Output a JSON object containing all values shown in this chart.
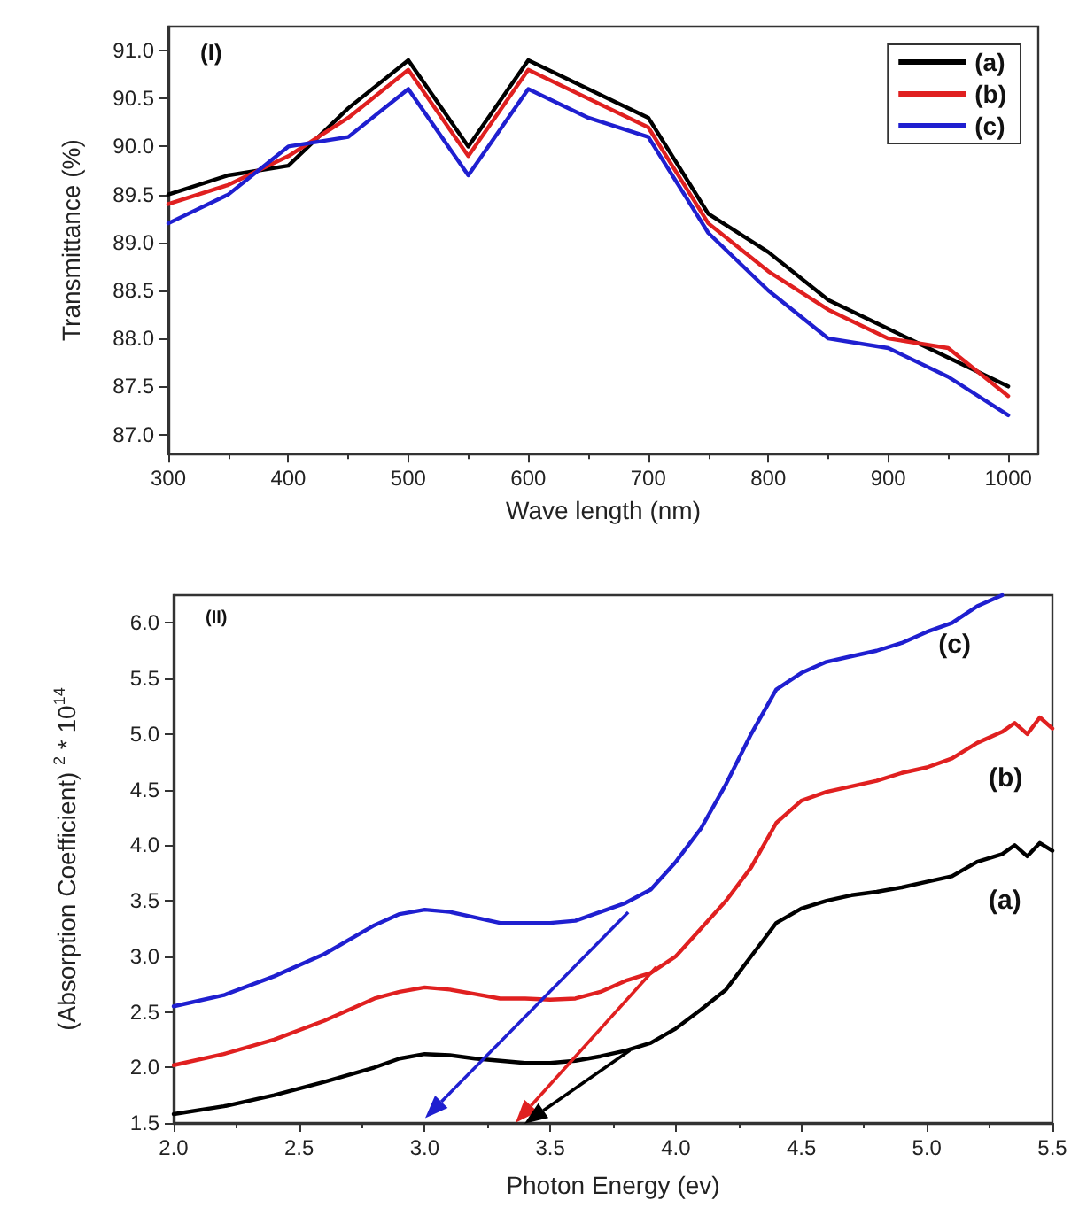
{
  "chart_data": [
    {
      "type": "line",
      "xlabel": "Wave length (nm)",
      "ylabel": "Transmittance (%)",
      "annotations": [
        "(I)"
      ],
      "x": [
        300,
        350,
        400,
        450,
        500,
        550,
        600,
        650,
        700,
        750,
        800,
        850,
        900,
        950,
        1000
      ],
      "series": [
        {
          "name": "(a)",
          "color": "#000000",
          "values": [
            89.5,
            89.7,
            89.8,
            90.4,
            90.9,
            90.0,
            90.9,
            90.6,
            90.3,
            89.3,
            88.9,
            88.4,
            88.1,
            87.8,
            87.5
          ]
        },
        {
          "name": "(b)",
          "color": "#e02020",
          "values": [
            89.4,
            89.6,
            89.9,
            90.3,
            90.8,
            89.9,
            90.8,
            90.5,
            90.2,
            89.2,
            88.7,
            88.3,
            88.0,
            87.9,
            87.4
          ]
        },
        {
          "name": "(c)",
          "color": "#1f1fd0",
          "values": [
            89.2,
            89.5,
            90.0,
            90.1,
            90.6,
            89.7,
            90.6,
            90.3,
            90.1,
            89.1,
            88.5,
            88.0,
            87.9,
            87.6,
            87.2
          ]
        }
      ],
      "xlim": [
        300,
        1025
      ],
      "xticks": [
        300,
        400,
        500,
        600,
        700,
        800,
        900,
        1000
      ],
      "ylim": [
        86.8,
        91.25
      ],
      "yticks": [
        {
          "value": 87,
          "label": "87.0"
        },
        {
          "value": 87.5,
          "label": "87.5"
        },
        {
          "value": 88,
          "label": "88.0"
        },
        {
          "value": 88.5,
          "label": "88.5"
        },
        {
          "value": 89,
          "label": "89.0"
        },
        {
          "value": 89.5,
          "label": "89.5"
        },
        {
          "value": 90,
          "label": "90.0"
        },
        {
          "value": 90.5,
          "label": "90.5"
        },
        {
          "value": 91,
          "label": "91.0"
        }
      ],
      "grid": false,
      "legend": "top right",
      "marker": "none",
      "line_style": "solid"
    },
    {
      "type": "line",
      "xlabel": "Photon Energy (ev)",
      "ylabel": "(Absorption Coefficient) $^{2}$ * 10$^{14}$",
      "annotations": [
        "(II)"
      ],
      "series": [
        {
          "name": "(c)",
          "color": "#1f1fd0",
          "x": [
            2.0,
            2.2,
            2.4,
            2.6,
            2.8,
            2.9,
            3.0,
            3.1,
            3.2,
            3.3,
            3.4,
            3.5,
            3.6,
            3.7,
            3.8,
            3.9,
            4.0,
            4.1,
            4.2,
            4.3,
            4.4,
            4.5,
            4.6,
            4.7,
            4.8,
            4.9,
            5.0,
            5.1,
            5.2,
            5.3
          ],
          "values": [
            2.55,
            2.65,
            2.82,
            3.02,
            3.28,
            3.38,
            3.42,
            3.4,
            3.35,
            3.3,
            3.3,
            3.3,
            3.32,
            3.4,
            3.48,
            3.6,
            3.85,
            4.15,
            4.55,
            5.0,
            5.4,
            5.55,
            5.65,
            5.7,
            5.75,
            5.82,
            5.92,
            6.0,
            6.15,
            6.25
          ]
        },
        {
          "name": "(b)",
          "color": "#e02020",
          "x": [
            2.0,
            2.2,
            2.4,
            2.6,
            2.8,
            2.9,
            3.0,
            3.1,
            3.2,
            3.3,
            3.4,
            3.5,
            3.6,
            3.7,
            3.8,
            3.9,
            4.0,
            4.1,
            4.2,
            4.3,
            4.4,
            4.5,
            4.6,
            4.7,
            4.8,
            4.9,
            5.0,
            5.1,
            5.2,
            5.3,
            5.35,
            5.4,
            5.45,
            5.5
          ],
          "values": [
            2.02,
            2.12,
            2.25,
            2.42,
            2.62,
            2.68,
            2.72,
            2.7,
            2.66,
            2.62,
            2.62,
            2.61,
            2.62,
            2.68,
            2.78,
            2.85,
            3.0,
            3.25,
            3.5,
            3.8,
            4.2,
            4.4,
            4.48,
            4.53,
            4.58,
            4.65,
            4.7,
            4.78,
            4.92,
            5.02,
            5.1,
            5.0,
            5.15,
            5.05
          ]
        },
        {
          "name": "(a)",
          "color": "#000000",
          "x": [
            2.0,
            2.2,
            2.4,
            2.6,
            2.8,
            2.9,
            3.0,
            3.1,
            3.2,
            3.3,
            3.4,
            3.5,
            3.6,
            3.7,
            3.8,
            3.9,
            4.0,
            4.1,
            4.2,
            4.25,
            4.3,
            4.35,
            4.4,
            4.5,
            4.6,
            4.7,
            4.8,
            4.9,
            5.0,
            5.1,
            5.2,
            5.3,
            5.35,
            5.4,
            5.45,
            5.5
          ],
          "values": [
            1.58,
            1.65,
            1.75,
            1.87,
            2.0,
            2.08,
            2.12,
            2.11,
            2.08,
            2.06,
            2.04,
            2.04,
            2.06,
            2.1,
            2.15,
            2.22,
            2.35,
            2.52,
            2.7,
            2.85,
            3.0,
            3.15,
            3.3,
            3.43,
            3.5,
            3.55,
            3.58,
            3.62,
            3.67,
            3.72,
            3.85,
            3.92,
            4.0,
            3.9,
            4.02,
            3.95
          ]
        }
      ],
      "xlim": [
        2.0,
        5.5
      ],
      "xticks": [
        {
          "value": 2,
          "label": "2.0"
        },
        {
          "value": 2.5,
          "label": "2.5"
        },
        {
          "value": 3,
          "label": "3.0"
        },
        {
          "value": 3.5,
          "label": "3.5"
        },
        {
          "value": 4,
          "label": "4.0"
        },
        {
          "value": 4.5,
          "label": "4.5"
        },
        {
          "value": 5,
          "label": "5.0"
        },
        {
          "value": 5.5,
          "label": "5.5"
        }
      ],
      "ylim": [
        1.5,
        6.25
      ],
      "yticks": [
        {
          "value": 1.5,
          "label": "1.5"
        },
        {
          "value": 2,
          "label": "2.0"
        },
        {
          "value": 2.5,
          "label": "2.5"
        },
        {
          "value": 3,
          "label": "3.0"
        },
        {
          "value": 3.5,
          "label": "3.5"
        },
        {
          "value": 4,
          "label": "4.0"
        },
        {
          "value": 4.5,
          "label": "4.5"
        },
        {
          "value": 5,
          "label": "5.0"
        },
        {
          "value": 5.5,
          "label": "5.5"
        },
        {
          "value": 6,
          "label": "6.0"
        }
      ],
      "grid": false,
      "legend": false,
      "marker": "none",
      "line_style": "solid"
    }
  ]
}
